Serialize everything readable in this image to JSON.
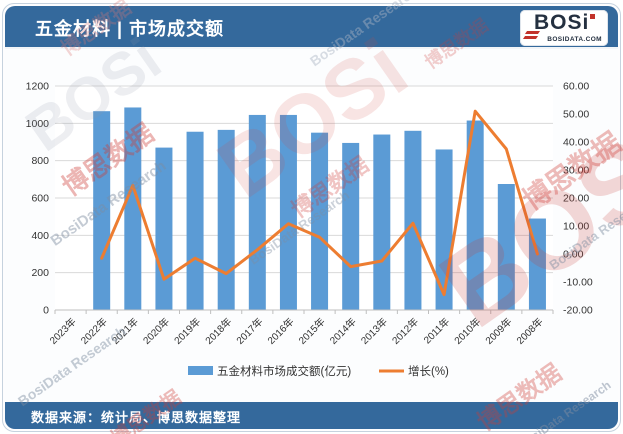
{
  "header": {
    "title": "五金材料 | 市场成交额",
    "logo": {
      "text": "BOSi",
      "subtext": "BOSIDATA.COM"
    }
  },
  "footer": {
    "source": "数据来源：统计局、博思数据整理"
  },
  "watermark": {
    "cn": "博思数据",
    "en": "BosiData Research",
    "logo": "BOSi"
  },
  "colors": {
    "header_bg": "#34699C",
    "bar": "#5B9BD5",
    "line": "#ED7D31",
    "grid": "#D9D9D9",
    "axis_line": "#BFBFBF",
    "axis_text": "#333333",
    "logo_red": "#C2322B",
    "logo_navy": "#243040"
  },
  "chart_data": {
    "type": "bar",
    "subtype": "bar+line dual axis",
    "categories": [
      "2023年",
      "2022年",
      "2021年",
      "2020年",
      "2019年",
      "2018年",
      "2017年",
      "2016年",
      "2015年",
      "2014年",
      "2013年",
      "2012年",
      "2011年",
      "2010年",
      "2009年",
      "2008年"
    ],
    "series": [
      {
        "name": "五金材料市场成交额(亿元)",
        "type": "bar",
        "axis": "left",
        "values": [
          null,
          1065,
          1085,
          870,
          955,
          965,
          1045,
          1045,
          950,
          895,
          940,
          960,
          860,
          1015,
          675,
          490
        ]
      },
      {
        "name": "增长(%)",
        "type": "line",
        "axis": "right",
        "values": [
          null,
          -1.5,
          24.5,
          -9.0,
          -1.5,
          -7.0,
          1.5,
          10.8,
          6.0,
          -4.5,
          -2.5,
          11.0,
          -14.5,
          51.0,
          37.5,
          0.0
        ]
      }
    ],
    "left_axis": {
      "min": 0,
      "max": 1200,
      "step": 200,
      "labels": [
        "1200",
        "1000",
        "800",
        "600",
        "400",
        "200",
        "0"
      ]
    },
    "right_axis": {
      "min": -20,
      "max": 60,
      "step": 10,
      "labels": [
        "60.00",
        "50.00",
        "40.00",
        "30.00",
        "20.00",
        "10.00",
        "0.00",
        "-10.00",
        "-20.00"
      ]
    },
    "grid": true,
    "legend_position": "bottom"
  }
}
